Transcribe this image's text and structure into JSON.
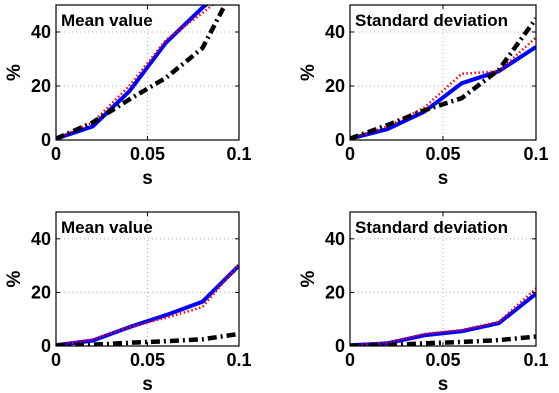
{
  "chart_data": [
    {
      "type": "line",
      "title": "Mean value",
      "xlabel": "s",
      "ylabel": "%",
      "xlim": [
        0,
        0.1
      ],
      "ylim": [
        0,
        50
      ],
      "xticks": [
        "0",
        "0.05",
        "0.1"
      ],
      "yticks": [
        "0",
        "20",
        "40"
      ],
      "grid": true,
      "x": [
        0,
        0.02,
        0.04,
        0.06,
        0.08,
        0.1
      ],
      "series": [
        {
          "color": "#0000ff",
          "style": "solid",
          "values": [
            0.5,
            5,
            18,
            36,
            49,
            60
          ]
        },
        {
          "color": "#ff0000",
          "style": "dotted",
          "values": [
            0.5,
            6.5,
            20,
            37,
            47,
            58
          ]
        },
        {
          "color": "#000000",
          "style": "dashdot",
          "values": [
            0.5,
            6.5,
            15,
            23,
            34,
            60
          ]
        }
      ]
    },
    {
      "type": "line",
      "title": "Standard deviation",
      "xlabel": "s",
      "ylabel": "%",
      "xlim": [
        0,
        0.1
      ],
      "ylim": [
        0,
        50
      ],
      "xticks": [
        "0",
        "0.05",
        "0.1"
      ],
      "yticks": [
        "0",
        "20",
        "40"
      ],
      "grid": true,
      "x": [
        0,
        0.02,
        0.04,
        0.06,
        0.08,
        0.1
      ],
      "series": [
        {
          "color": "#0000ff",
          "style": "solid",
          "values": [
            0.5,
            4,
            10.5,
            21,
            25.5,
            34.5
          ]
        },
        {
          "color": "#ff0000",
          "style": "dotted",
          "values": [
            0.5,
            5,
            12,
            24.5,
            25.5,
            38
          ]
        },
        {
          "color": "#000000",
          "style": "dashdot",
          "values": [
            0.5,
            5.5,
            11,
            15.5,
            26,
            45
          ]
        }
      ]
    },
    {
      "type": "line",
      "title": "Mean value",
      "xlabel": "s",
      "ylabel": "%",
      "xlim": [
        0,
        0.1
      ],
      "ylim": [
        0,
        50
      ],
      "xticks": [
        "0",
        "0.05",
        "0.1"
      ],
      "yticks": [
        "0",
        "20",
        "40"
      ],
      "grid": true,
      "x": [
        0,
        0.02,
        0.04,
        0.06,
        0.08,
        0.1
      ],
      "series": [
        {
          "color": "#0000ff",
          "style": "solid",
          "values": [
            0.3,
            2,
            7,
            11.5,
            16.5,
            30
          ]
        },
        {
          "color": "#ff0000",
          "style": "dotted",
          "values": [
            0.3,
            2.5,
            7,
            10.5,
            14.5,
            30.5
          ]
        },
        {
          "color": "#000000",
          "style": "dashdot",
          "values": [
            0.2,
            0.5,
            1.2,
            1.8,
            2.5,
            4.5
          ]
        }
      ]
    },
    {
      "type": "line",
      "title": "Standard deviation",
      "xlabel": "s",
      "ylabel": "%",
      "xlim": [
        0,
        0.1
      ],
      "ylim": [
        0,
        50
      ],
      "xticks": [
        "0",
        "0.05",
        "0.1"
      ],
      "yticks": [
        "0",
        "20",
        "40"
      ],
      "grid": true,
      "x": [
        0,
        0.02,
        0.04,
        0.06,
        0.08,
        0.1
      ],
      "series": [
        {
          "color": "#0000ff",
          "style": "solid",
          "values": [
            0.3,
            1,
            4,
            5.5,
            8.5,
            19.5
          ]
        },
        {
          "color": "#ff0000",
          "style": "dotted",
          "values": [
            0.3,
            1.2,
            4.5,
            6,
            9,
            21.5
          ]
        },
        {
          "color": "#000000",
          "style": "dashdot",
          "values": [
            0.1,
            0.3,
            1,
            1.5,
            2.2,
            3.5
          ]
        }
      ]
    }
  ]
}
